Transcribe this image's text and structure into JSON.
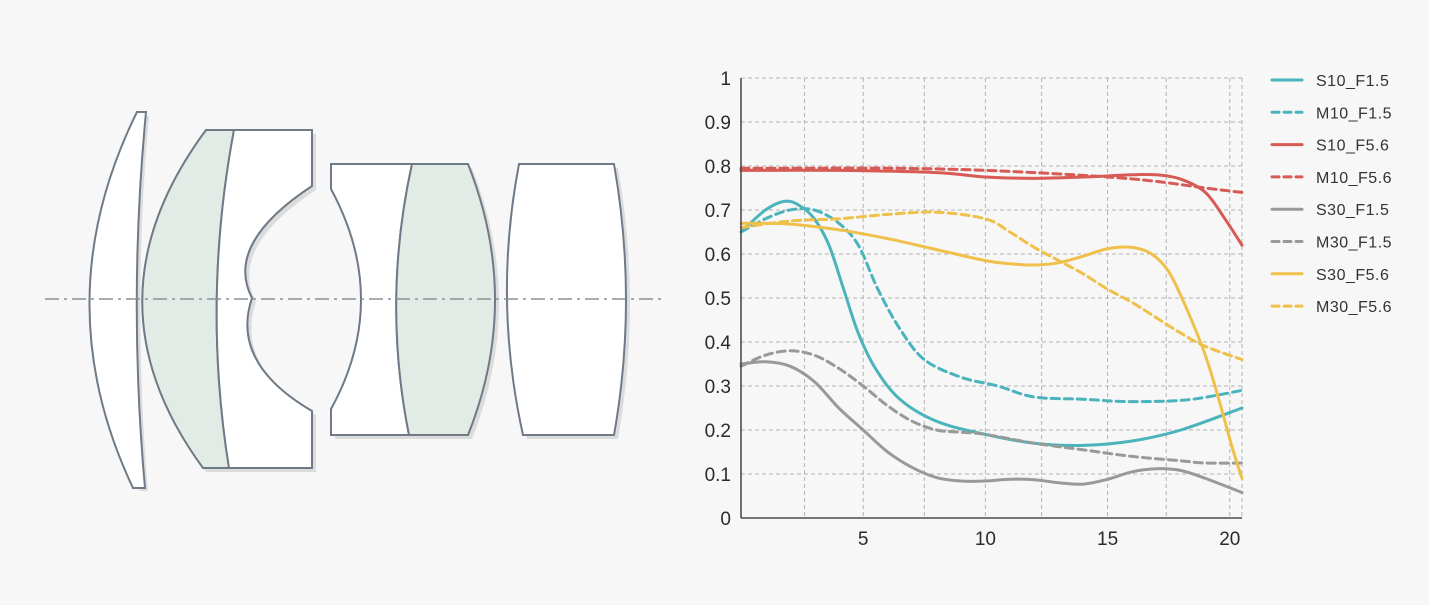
{
  "lens_diagram": {
    "colors": {
      "outline": "#6e7b86",
      "fill": "#ffffff",
      "cemented_fill": "#e2ebe5",
      "optical_axis": "#8a9198"
    }
  },
  "chart_data": {
    "type": "line",
    "title": "",
    "xlabel": "",
    "ylabel": "",
    "xlim": [
      0,
      20.5
    ],
    "ylim": [
      0,
      1
    ],
    "x_ticks": [
      {
        "value": 5,
        "label": "5"
      },
      {
        "value": 10,
        "label": "10"
      },
      {
        "value": 15,
        "label": "15"
      },
      {
        "value": 20,
        "label": "20"
      }
    ],
    "x_grid": [
      2.6,
      5,
      7.5,
      10,
      12.3,
      15,
      17.4,
      20
    ],
    "y_ticks": [
      {
        "value": 0,
        "label": "0"
      },
      {
        "value": 0.1,
        "label": "0.1"
      },
      {
        "value": 0.2,
        "label": "0.2"
      },
      {
        "value": 0.3,
        "label": "0.3"
      },
      {
        "value": 0.4,
        "label": "0.4"
      },
      {
        "value": 0.5,
        "label": "0.5"
      },
      {
        "value": 0.6,
        "label": "0.6"
      },
      {
        "value": 0.7,
        "label": "0.7"
      },
      {
        "value": 0.8,
        "label": "0.8"
      },
      {
        "value": 0.9,
        "label": "0.9"
      },
      {
        "value": 1,
        "label": "1"
      }
    ],
    "grid": true,
    "legend_position": "right",
    "series": [
      {
        "name": "S10_F1.5",
        "color": "#4ab3bb",
        "dashed": false,
        "points": [
          [
            0,
            0.65
          ],
          [
            1,
            0.7
          ],
          [
            1.8,
            0.72
          ],
          [
            2.4,
            0.71
          ],
          [
            3,
            0.68
          ],
          [
            3.6,
            0.62
          ],
          [
            4.2,
            0.52
          ],
          [
            4.8,
            0.42
          ],
          [
            5.5,
            0.34
          ],
          [
            6.5,
            0.27
          ],
          [
            8,
            0.22
          ],
          [
            10,
            0.19
          ],
          [
            12,
            0.17
          ],
          [
            14,
            0.165
          ],
          [
            16,
            0.175
          ],
          [
            18,
            0.2
          ],
          [
            20.5,
            0.25
          ]
        ]
      },
      {
        "name": "M10_F1.5",
        "color": "#4ab3bb",
        "dashed": true,
        "points": [
          [
            0,
            0.65
          ],
          [
            1,
            0.68
          ],
          [
            2,
            0.7
          ],
          [
            3,
            0.7
          ],
          [
            4,
            0.67
          ],
          [
            4.8,
            0.62
          ],
          [
            5.6,
            0.52
          ],
          [
            6.5,
            0.43
          ],
          [
            7.5,
            0.36
          ],
          [
            9,
            0.32
          ],
          [
            10.5,
            0.3
          ],
          [
            12,
            0.275
          ],
          [
            14,
            0.27
          ],
          [
            15.5,
            0.265
          ],
          [
            17,
            0.265
          ],
          [
            18.5,
            0.27
          ],
          [
            20.5,
            0.29
          ]
        ]
      },
      {
        "name": "S10_F5.6",
        "color": "#d75a55",
        "dashed": false,
        "points": [
          [
            0,
            0.79
          ],
          [
            4,
            0.79
          ],
          [
            8,
            0.785
          ],
          [
            10,
            0.775
          ],
          [
            12,
            0.772
          ],
          [
            14,
            0.775
          ],
          [
            16,
            0.78
          ],
          [
            17,
            0.78
          ],
          [
            18,
            0.77
          ],
          [
            19,
            0.74
          ],
          [
            19.8,
            0.68
          ],
          [
            20.5,
            0.62
          ]
        ]
      },
      {
        "name": "M10_F5.6",
        "color": "#d75a55",
        "dashed": true,
        "points": [
          [
            0,
            0.795
          ],
          [
            3,
            0.795
          ],
          [
            6,
            0.795
          ],
          [
            9,
            0.792
          ],
          [
            12,
            0.785
          ],
          [
            15,
            0.775
          ],
          [
            17,
            0.765
          ],
          [
            19,
            0.75
          ],
          [
            20.5,
            0.74
          ]
        ]
      },
      {
        "name": "S30_F1.5",
        "color": "#999999",
        "dashed": false,
        "points": [
          [
            0,
            0.35
          ],
          [
            1,
            0.355
          ],
          [
            2,
            0.345
          ],
          [
            3,
            0.31
          ],
          [
            4,
            0.25
          ],
          [
            5,
            0.2
          ],
          [
            6,
            0.15
          ],
          [
            7,
            0.115
          ],
          [
            8,
            0.092
          ],
          [
            9,
            0.084
          ],
          [
            10,
            0.084
          ],
          [
            11,
            0.088
          ],
          [
            12,
            0.087
          ],
          [
            13,
            0.08
          ],
          [
            14,
            0.077
          ],
          [
            15,
            0.088
          ],
          [
            16,
            0.105
          ],
          [
            17,
            0.112
          ],
          [
            18,
            0.108
          ],
          [
            19,
            0.09
          ],
          [
            20.5,
            0.058
          ]
        ]
      },
      {
        "name": "M30_F1.5",
        "color": "#999999",
        "dashed": true,
        "points": [
          [
            0,
            0.345
          ],
          [
            1,
            0.37
          ],
          [
            2,
            0.38
          ],
          [
            3,
            0.37
          ],
          [
            4,
            0.34
          ],
          [
            5,
            0.3
          ],
          [
            6,
            0.255
          ],
          [
            7,
            0.22
          ],
          [
            8,
            0.2
          ],
          [
            9,
            0.195
          ],
          [
            10,
            0.19
          ],
          [
            12,
            0.17
          ],
          [
            14,
            0.155
          ],
          [
            16,
            0.14
          ],
          [
            18,
            0.13
          ],
          [
            19,
            0.125
          ],
          [
            20.5,
            0.125
          ]
        ]
      },
      {
        "name": "S30_F5.6",
        "color": "#efc14a",
        "dashed": false,
        "points": [
          [
            0,
            0.67
          ],
          [
            2,
            0.668
          ],
          [
            4,
            0.655
          ],
          [
            6,
            0.635
          ],
          [
            8,
            0.61
          ],
          [
            10,
            0.585
          ],
          [
            11,
            0.578
          ],
          [
            12,
            0.575
          ],
          [
            13,
            0.58
          ],
          [
            14,
            0.595
          ],
          [
            15,
            0.612
          ],
          [
            16,
            0.615
          ],
          [
            16.8,
            0.6
          ],
          [
            17.5,
            0.56
          ],
          [
            18.2,
            0.48
          ],
          [
            19,
            0.37
          ],
          [
            19.6,
            0.26
          ],
          [
            20.1,
            0.16
          ],
          [
            20.5,
            0.09
          ]
        ]
      },
      {
        "name": "M30_F5.6",
        "color": "#efc14a",
        "dashed": true,
        "points": [
          [
            0,
            0.66
          ],
          [
            2,
            0.675
          ],
          [
            4,
            0.68
          ],
          [
            6,
            0.69
          ],
          [
            8,
            0.695
          ],
          [
            10,
            0.68
          ],
          [
            11,
            0.65
          ],
          [
            12,
            0.615
          ],
          [
            13,
            0.585
          ],
          [
            14,
            0.555
          ],
          [
            15,
            0.52
          ],
          [
            16,
            0.49
          ],
          [
            17,
            0.455
          ],
          [
            18,
            0.42
          ],
          [
            19,
            0.39
          ],
          [
            20.5,
            0.36
          ]
        ]
      }
    ]
  }
}
